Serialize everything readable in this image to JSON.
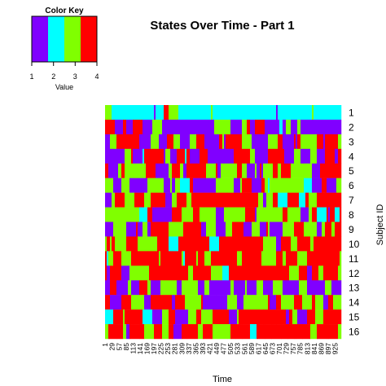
{
  "chart_data": {
    "type": "heatmap",
    "title": "States Over Time - Part 1",
    "xlabel": "Time",
    "ylabel": "Subject ID",
    "x_tick_labels": [
      "1",
      "29",
      "57",
      "85",
      "113",
      "141",
      "169",
      "197",
      "225",
      "253",
      "281",
      "309",
      "337",
      "365",
      "393",
      "421",
      "449",
      "477",
      "505",
      "533",
      "561",
      "589",
      "617",
      "645",
      "673",
      "701",
      "729",
      "757",
      "785",
      "813",
      "841",
      "869",
      "897",
      "925"
    ],
    "time_points": 949,
    "rows": [
      "1",
      "2",
      "3",
      "4",
      "5",
      "6",
      "7",
      "8",
      "9",
      "10",
      "11",
      "12",
      "13",
      "14",
      "15",
      "16"
    ],
    "states": [
      1,
      2,
      3,
      4
    ],
    "state_colors": [
      "#8000ff",
      "#00ffff",
      "#80ff00",
      "#ff0000"
    ],
    "row_profiles": [
      {
        "row": "1",
        "weights": [
          0.05,
          0.85,
          0.05,
          0.05
        ]
      },
      {
        "row": "2",
        "weights": [
          0.8,
          0.02,
          0.1,
          0.08
        ]
      },
      {
        "row": "3",
        "weights": [
          0.3,
          0.02,
          0.3,
          0.38
        ]
      },
      {
        "row": "4",
        "weights": [
          0.45,
          0.02,
          0.15,
          0.38
        ]
      },
      {
        "row": "5",
        "weights": [
          0.15,
          0.02,
          0.4,
          0.43
        ]
      },
      {
        "row": "6",
        "weights": [
          0.5,
          0.02,
          0.33,
          0.15
        ]
      },
      {
        "row": "7",
        "weights": [
          0.1,
          0.02,
          0.25,
          0.63
        ]
      },
      {
        "row": "8",
        "weights": [
          0.4,
          0.02,
          0.4,
          0.18
        ]
      },
      {
        "row": "9",
        "weights": [
          0.4,
          0.02,
          0.3,
          0.28
        ]
      },
      {
        "row": "10",
        "weights": [
          0.08,
          0.02,
          0.25,
          0.65
        ]
      },
      {
        "row": "11",
        "weights": [
          0.05,
          0.02,
          0.2,
          0.73
        ]
      },
      {
        "row": "12",
        "weights": [
          0.05,
          0.02,
          0.25,
          0.68
        ]
      },
      {
        "row": "13",
        "weights": [
          0.6,
          0.02,
          0.3,
          0.08
        ]
      },
      {
        "row": "14",
        "weights": [
          0.3,
          0.05,
          0.35,
          0.3
        ]
      },
      {
        "row": "15",
        "weights": [
          0.12,
          0.02,
          0.22,
          0.64
        ]
      },
      {
        "row": "16",
        "weights": [
          0.05,
          0.02,
          0.28,
          0.65
        ]
      }
    ],
    "color_key": {
      "title": "Color Key",
      "xlabel": "Value",
      "ticks": [
        "1",
        "2",
        "3",
        "4"
      ]
    }
  }
}
